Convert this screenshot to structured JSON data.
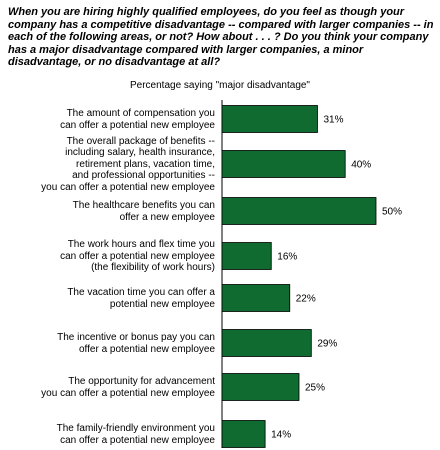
{
  "question": "When you are hiring highly qualified employees, do you feel as though your company has a competitive disadvantage -- compared with larger companies -- in each of the following areas, or not? How about . . . ? Do you think your company has a major disadvantage compared with larger companies, a minor disadvantage, or no disadvantage at all?",
  "chart_data": {
    "type": "bar",
    "orientation": "horizontal",
    "title": "Percentage saying \"major disadvantage\"",
    "categories": [
      "The amount of compensation you can offer a potential new employee",
      "The overall package of benefits -- including salary, health insurance, retirement plans, vacation time, and professional opportunities -- you can offer a potential new employee",
      "The healthcare benefits you can offer a new employee",
      "The work hours and flex time you can offer a potential new employee (the flexibility of work hours)",
      "The vacation time you can offer a potential new employee",
      "The incentive or bonus pay you can offer a potential new employee",
      "The opportunity for advancement you can offer a potential new employee",
      "The family-friendly environment you can offer a potential new employee"
    ],
    "category_lines": [
      [
        "The amount of compensation you",
        "can offer a potential new employee"
      ],
      [
        "The overall package of benefits --",
        "including salary, health insurance,",
        "retirement plans, vacation time,",
        "and professional opportunities --",
        "you can offer a potential new employee"
      ],
      [
        "The healthcare benefits you can",
        "offer a new employee"
      ],
      [
        "The work hours and flex time you",
        "can offer a potential new employee",
        "(the flexibility of work hours)"
      ],
      [
        "The vacation time you can offer a",
        "potential new employee"
      ],
      [
        "The incentive or bonus pay you can",
        "offer a potential new employee"
      ],
      [
        "The opportunity for advancement",
        "you can offer a potential new employee"
      ],
      [
        "The family-friendly environment you",
        "can offer a potential new employee"
      ]
    ],
    "values": [
      31,
      40,
      50,
      16,
      22,
      29,
      25,
      14
    ],
    "value_labels": [
      "31%",
      "40%",
      "50%",
      "16%",
      "22%",
      "29%",
      "25%",
      "14%"
    ],
    "bar_color": "#0f6b2f",
    "axis_color": "#000000",
    "xlim": [
      0,
      50
    ],
    "grid": false,
    "legend": "none"
  }
}
